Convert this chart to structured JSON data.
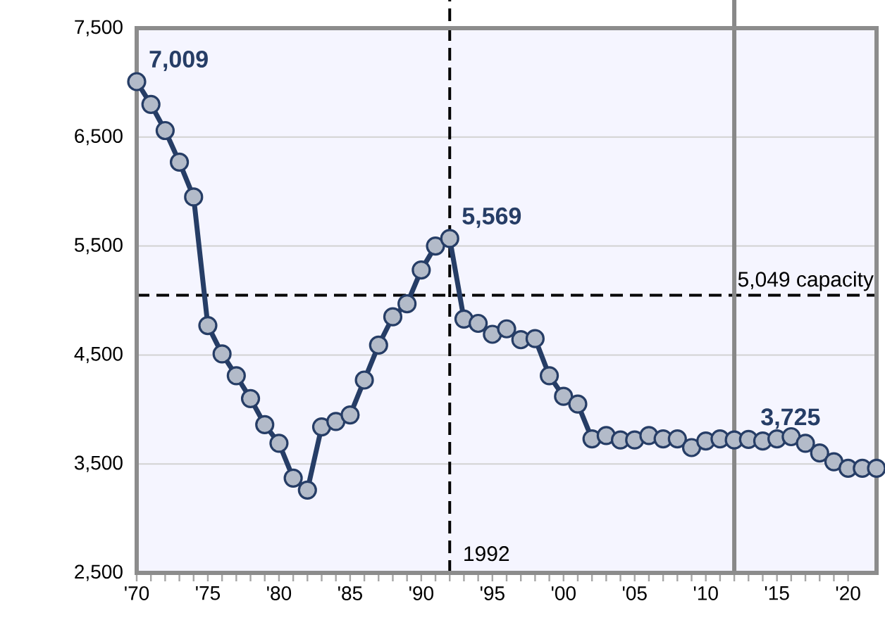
{
  "chart_data": {
    "type": "line",
    "x": [
      1970,
      1971,
      1972,
      1973,
      1974,
      1975,
      1976,
      1977,
      1978,
      1979,
      1980,
      1981,
      1982,
      1983,
      1984,
      1985,
      1986,
      1987,
      1988,
      1989,
      1990,
      1991,
      1992,
      1993,
      1994,
      1995,
      1996,
      1997,
      1998,
      1999,
      2000,
      2001,
      2002,
      2003,
      2004,
      2005,
      2006,
      2007,
      2008,
      2009,
      2010,
      2011,
      2012,
      2013,
      2014,
      2015,
      2016,
      2017,
      2018,
      2019,
      2020,
      2021,
      2022
    ],
    "series": [
      {
        "color": "#263d66",
        "values": [
          7009,
          6800,
          6560,
          6270,
          5950,
          4770,
          4510,
          4310,
          4100,
          3860,
          3690,
          3370,
          3260,
          3840,
          3890,
          3950,
          4270,
          4590,
          4850,
          4970,
          5280,
          5500,
          5569,
          4830,
          4790,
          4690,
          4740,
          4640,
          4650,
          4310,
          4120,
          4050,
          3730,
          3760,
          3720,
          3720,
          3760,
          3730,
          3730,
          3650,
          3710,
          3730,
          3720,
          3725,
          3710,
          3730,
          3750,
          3690,
          3600,
          3520,
          3460,
          3460,
          3460
        ]
      }
    ],
    "xlim": [
      1970,
      2022
    ],
    "xticks": [
      {
        "value": 1970,
        "label": "'70"
      },
      {
        "value": 1975,
        "label": "'75"
      },
      {
        "value": 1980,
        "label": "'80"
      },
      {
        "value": 1985,
        "label": "'85"
      },
      {
        "value": 1990,
        "label": "'90"
      },
      {
        "value": 1995,
        "label": "'95"
      },
      {
        "value": 2000,
        "label": "'00"
      },
      {
        "value": 2005,
        "label": "'05"
      },
      {
        "value": 2010,
        "label": "'10"
      },
      {
        "value": 2015,
        "label": "'15"
      },
      {
        "value": 2020,
        "label": "'20"
      }
    ],
    "ylim": [
      2500,
      7500
    ],
    "yticks": [
      {
        "value": 2500,
        "label": "2,500"
      },
      {
        "value": 3500,
        "label": "3,500"
      },
      {
        "value": 4500,
        "label": "4,500"
      },
      {
        "value": 5500,
        "label": "5,500"
      },
      {
        "value": 6500,
        "label": "6,500"
      },
      {
        "value": 7500,
        "label": "7,500"
      }
    ],
    "grid": "y",
    "marker": "circle",
    "line_style": "solid",
    "ref_lines": [
      {
        "axis": "y",
        "value": 5049,
        "label": "5,049 capacity",
        "color": "#000000",
        "line_style": "dashed"
      },
      {
        "axis": "x",
        "value": 1992,
        "label": "1992",
        "color": "#000000",
        "line_style": "dashed"
      },
      {
        "axis": "x",
        "value": 2012,
        "color": "#888888",
        "line_style": "solid"
      }
    ],
    "annotations": [
      {
        "text": "7,009",
        "x": 1970,
        "y": 7009
      },
      {
        "text": "5,569",
        "x": 1992,
        "y": 5569
      },
      {
        "text": "3,725",
        "x": 2013,
        "y": 3725
      }
    ]
  }
}
